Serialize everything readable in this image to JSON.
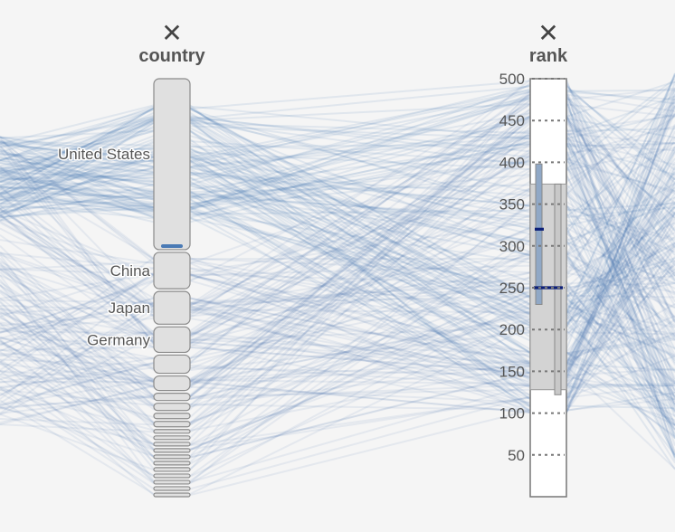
{
  "chart_data": {
    "type": "parallel-coordinates",
    "dimensions": [
      {
        "name": "country",
        "remove_label": "✕",
        "type": "categorical",
        "categories": [
          {
            "name": "United States",
            "weight": 47
          },
          {
            "name": "China",
            "weight": 10
          },
          {
            "name": "Japan",
            "weight": 9
          },
          {
            "name": "Germany",
            "weight": 7
          },
          {
            "name": "",
            "weight": 5
          },
          {
            "name": "",
            "weight": 4
          },
          {
            "name": "",
            "weight": 2
          },
          {
            "name": "",
            "weight": 2
          },
          {
            "name": "",
            "weight": 1.5
          },
          {
            "name": "",
            "weight": 1.5
          },
          {
            "name": "",
            "weight": 1
          },
          {
            "name": "",
            "weight": 1
          },
          {
            "name": "",
            "weight": 1
          },
          {
            "name": "",
            "weight": 1
          },
          {
            "name": "",
            "weight": 1
          },
          {
            "name": "",
            "weight": 1
          },
          {
            "name": "",
            "weight": 1
          },
          {
            "name": "",
            "weight": 1
          },
          {
            "name": "",
            "weight": 1
          },
          {
            "name": "",
            "weight": 1
          },
          {
            "name": "",
            "weight": 1
          }
        ]
      },
      {
        "name": "rank",
        "remove_label": "✕",
        "type": "numeric",
        "domain": [
          0,
          500
        ],
        "ticks": [
          50,
          100,
          150,
          200,
          250,
          300,
          350,
          400,
          450,
          500
        ],
        "boxplots": [
          {
            "min": 128,
            "max": 374,
            "median": 250
          },
          {
            "min": 230,
            "max": 398,
            "median": 320
          },
          {
            "min": 122,
            "max": 374,
            "median": 250
          }
        ]
      }
    ],
    "line_color": "#4a7ab5"
  }
}
